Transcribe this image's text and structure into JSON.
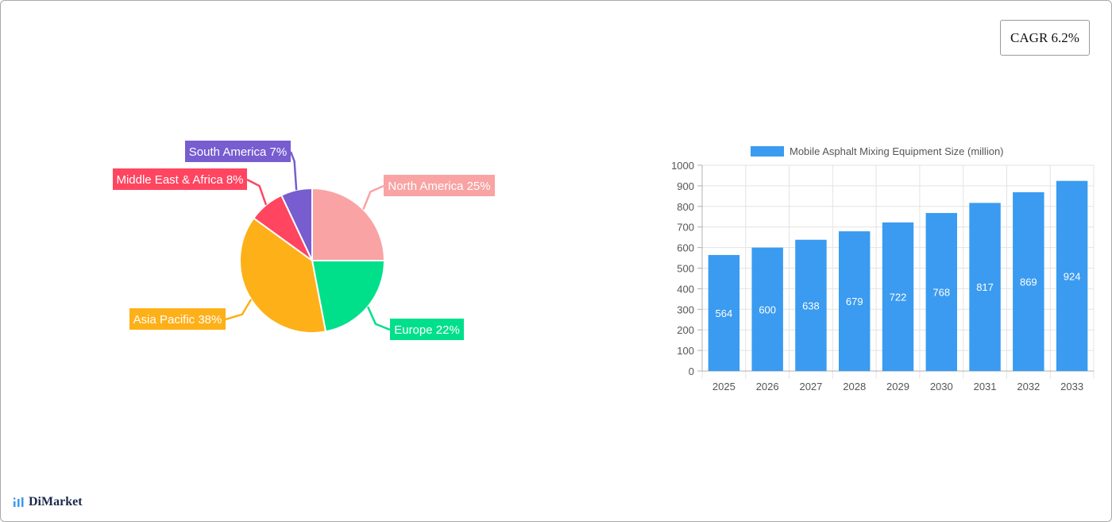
{
  "cagr": {
    "label": "CAGR 6.2%"
  },
  "brand": {
    "name": "DiMarket",
    "icon": "bar-logo-icon"
  },
  "chart_data": [
    {
      "type": "pie",
      "title": "",
      "slices": [
        {
          "label": "North America",
          "value": 25,
          "display": "North America 25%",
          "color": "#f9a3a4"
        },
        {
          "label": "Europe",
          "value": 22,
          "display": "Europe 22%",
          "color": "#00e08a"
        },
        {
          "label": "Asia Pacific",
          "value": 38,
          "display": "Asia Pacific 38%",
          "color": "#feb019"
        },
        {
          "label": "Middle East & Africa",
          "value": 8,
          "display": "Middle East & Africa 8%",
          "color": "#ff4560"
        },
        {
          "label": "South America",
          "value": 7,
          "display": "South America 7%",
          "color": "#775dd0"
        }
      ]
    },
    {
      "type": "bar",
      "title": "",
      "legend": {
        "label": "Mobile Asphalt Mixing Equipment Size (million)",
        "position": "top"
      },
      "categories": [
        "2025",
        "2026",
        "2027",
        "2028",
        "2029",
        "2030",
        "2031",
        "2032",
        "2033"
      ],
      "values": [
        564,
        600,
        638,
        679,
        722,
        768,
        817,
        869,
        924
      ],
      "ylim": [
        0,
        1000
      ],
      "yticks": [
        0,
        100,
        200,
        300,
        400,
        500,
        600,
        700,
        800,
        900,
        1000
      ],
      "grid": true,
      "color": "#3a9bf0",
      "data_labels": true
    }
  ]
}
